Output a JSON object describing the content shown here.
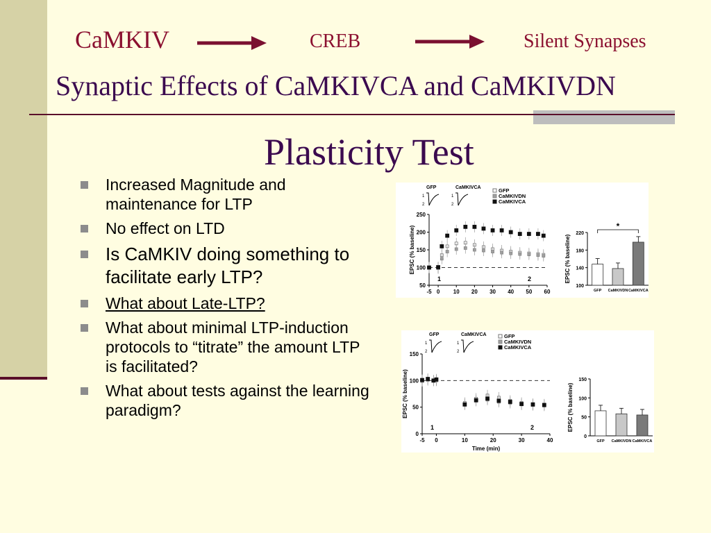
{
  "header": {
    "pathway": [
      "CaMKIV",
      "CREB",
      "Silent Synapses"
    ],
    "subtitle": "Synaptic Effects of CaMKIVCA and CaMKIVDN",
    "title": "Plasticity Test"
  },
  "bullets": [
    {
      "text": "Increased Magnitude and maintenance for LTP",
      "size": "small"
    },
    {
      "text": "No effect on LTD",
      "size": "small"
    },
    {
      "text": "Is CaMKIV doing something to facilitate early LTP?",
      "size": "large"
    },
    {
      "text": "What about Late-LTP?",
      "size": "small",
      "underline": true
    },
    {
      "text": "What about minimal LTP-induction protocols to “titrate” the amount LTP is facilitated?",
      "size": "small"
    },
    {
      "text": "What about tests against the learning paradigm?",
      "size": "small"
    }
  ],
  "colors": {
    "bg": "#fffde1",
    "accent": "#8b1030",
    "title": "#3b0a4f",
    "bar": "#d6d2a6"
  },
  "chart_data": [
    {
      "type": "scatter",
      "title": "",
      "trace_labels": [
        "GFP",
        "CaMKIVCA"
      ],
      "trace_marks": [
        "1",
        "2",
        "1",
        "2"
      ],
      "legend": [
        "GFP",
        "CaMKIVDN",
        "CaMKIVCA"
      ],
      "ylabel": "EPSC (% baseline)",
      "xlabel": "",
      "xlim": [
        -5,
        60
      ],
      "ylim": [
        50,
        250
      ],
      "xticks": [
        -5,
        0,
        10,
        20,
        30,
        40,
        50,
        60
      ],
      "yticks": [
        50,
        100,
        150,
        200,
        250
      ],
      "period_marks": [
        "1",
        "2"
      ],
      "series": [
        {
          "name": "GFP",
          "x": [
            -5,
            0,
            2,
            5,
            10,
            15,
            20,
            25,
            30,
            35,
            40,
            45,
            50,
            55,
            58
          ],
          "y": [
            100,
            99,
            135,
            160,
            168,
            170,
            164,
            158,
            152,
            148,
            145,
            142,
            140,
            138,
            136
          ]
        },
        {
          "name": "CaMKIVDN",
          "x": [
            -5,
            0,
            2,
            5,
            10,
            15,
            20,
            25,
            30,
            35,
            40,
            45,
            50,
            55,
            58
          ],
          "y": [
            100,
            98,
            125,
            145,
            152,
            155,
            150,
            148,
            145,
            142,
            140,
            138,
            137,
            135,
            133
          ]
        },
        {
          "name": "CaMKIVCA",
          "x": [
            -5,
            0,
            2,
            5,
            10,
            15,
            20,
            25,
            30,
            35,
            40,
            45,
            50,
            55,
            58
          ],
          "y": [
            100,
            101,
            160,
            190,
            205,
            215,
            215,
            210,
            205,
            205,
            200,
            195,
            195,
            195,
            190
          ]
        }
      ],
      "inset": {
        "ylabel": "EPSC (% baseline)",
        "categories": [
          "GFP",
          "CaMKIVDN",
          "CaMKIVCA"
        ],
        "values": [
          148,
          138,
          198
        ],
        "ylim": [
          100,
          220
        ],
        "yticks": [
          100,
          140,
          180,
          220
        ],
        "annotation": "*"
      }
    },
    {
      "type": "scatter",
      "title": "",
      "trace_labels": [
        "GFP",
        "CaMKIVCA"
      ],
      "trace_marks": [
        "1",
        "2",
        "1",
        "2"
      ],
      "legend": [
        "GFP",
        "CaMKIVDN",
        "CaMKIVCA"
      ],
      "ylabel": "EPSC (% baseline)",
      "xlabel": "Time (min)",
      "xlim": [
        -5,
        40
      ],
      "ylim": [
        0,
        150
      ],
      "xticks": [
        -5,
        0,
        10,
        20,
        30,
        40
      ],
      "yticks": [
        0,
        50,
        100,
        150
      ],
      "period_marks": [
        "1",
        "2"
      ],
      "series": [
        {
          "name": "GFP",
          "x": [
            -5,
            -3,
            -1,
            0,
            10,
            14,
            18,
            22,
            26,
            30,
            34,
            38
          ],
          "y": [
            100,
            102,
            100,
            101,
            58,
            66,
            72,
            68,
            62,
            58,
            56,
            55
          ]
        },
        {
          "name": "CaMKIVDN",
          "x": [
            -5,
            -3,
            -1,
            0,
            10,
            14,
            18,
            22,
            26,
            30,
            34,
            38
          ],
          "y": [
            99,
            101,
            100,
            100,
            56,
            62,
            64,
            60,
            58,
            55,
            54,
            53
          ]
        },
        {
          "name": "CaMKIVCA",
          "x": [
            -5,
            -3,
            -1,
            0,
            10,
            14,
            18,
            22,
            26,
            30,
            34,
            38
          ],
          "y": [
            101,
            103,
            100,
            102,
            55,
            63,
            66,
            62,
            60,
            56,
            55,
            54
          ]
        }
      ],
      "inset": {
        "ylabel": "EPSC (% baseline)",
        "categories": [
          "GFP",
          "CaMKIVDN",
          "CaMKIVCA"
        ],
        "values": [
          66,
          58,
          55
        ],
        "ylim": [
          0,
          150
        ],
        "yticks": [
          0,
          50,
          100,
          150
        ]
      }
    }
  ]
}
